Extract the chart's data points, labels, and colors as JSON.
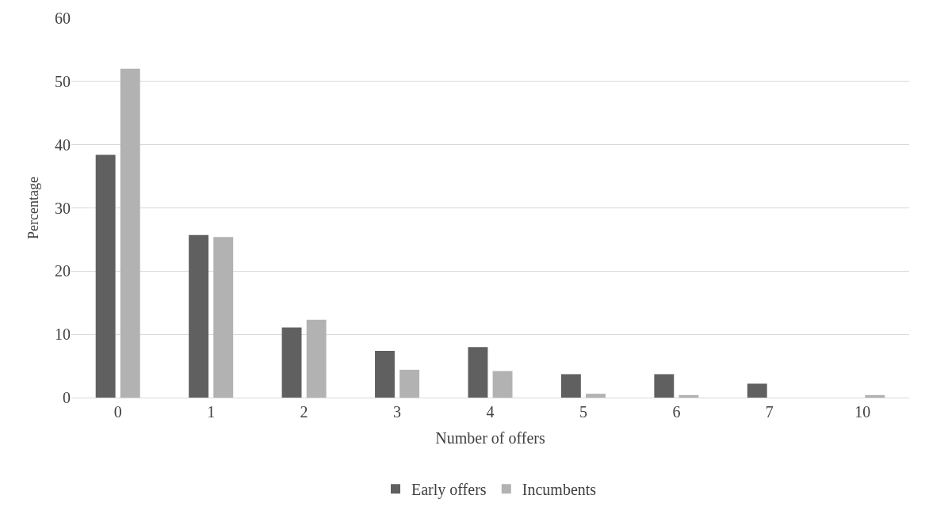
{
  "chart_data": {
    "type": "bar",
    "xlabel": "Number of offers",
    "ylabel": "Percentage",
    "categories": [
      "0",
      "1",
      "2",
      "3",
      "4",
      "5",
      "6",
      "7",
      "10"
    ],
    "series": [
      {
        "name": "Early offers",
        "color": "#606060",
        "values": [
          38.4,
          25.7,
          11.1,
          7.4,
          8.0,
          3.7,
          3.7,
          2.2,
          0
        ]
      },
      {
        "name": "Incumbents",
        "color": "#b2b2b2",
        "values": [
          52.0,
          25.4,
          12.3,
          4.4,
          4.2,
          0.6,
          0.4,
          0,
          0.4
        ]
      }
    ],
    "ylim": [
      0,
      60
    ],
    "yticks": [
      0,
      10,
      20,
      30,
      40,
      50,
      60
    ],
    "grid": "y",
    "legend": "bottom"
  }
}
